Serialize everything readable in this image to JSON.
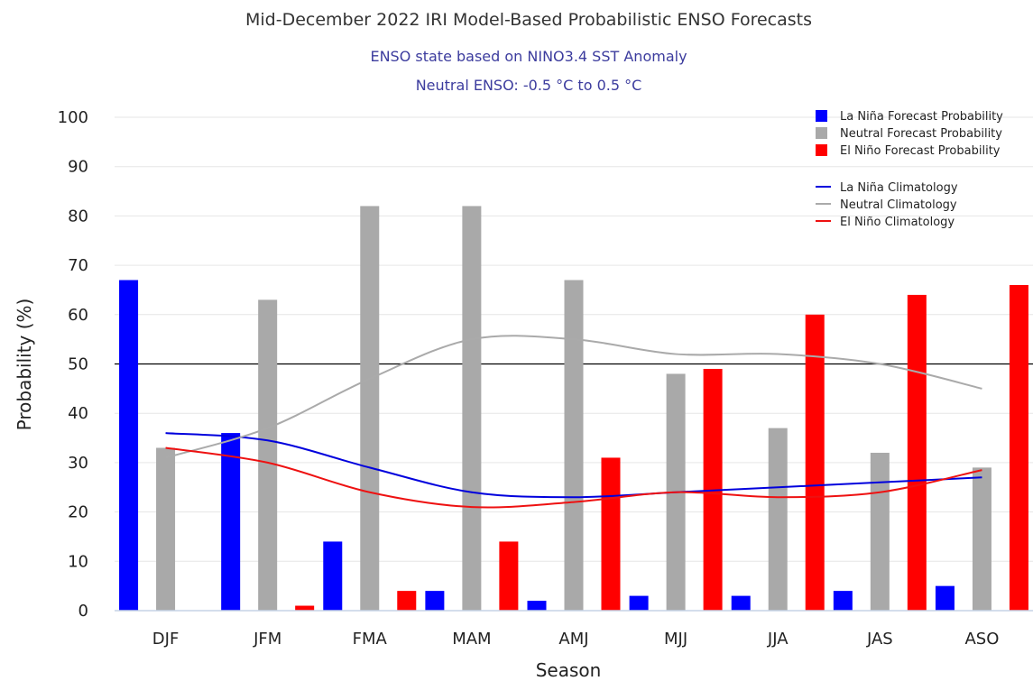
{
  "chart_data": {
    "type": "bar",
    "title": "Mid-December 2022 IRI Model-Based Probabilistic ENSO Forecasts",
    "subtitle_lines": [
      "ENSO state based on NINO3.4 SST Anomaly",
      "Neutral ENSO: -0.5 °C to 0.5 °C"
    ],
    "xlabel": "Season",
    "ylabel": "Probability (%)",
    "ylim": [
      0,
      100
    ],
    "yticks": [
      0,
      10,
      20,
      30,
      40,
      50,
      60,
      70,
      80,
      90,
      100
    ],
    "reference_line": 50,
    "grid": true,
    "legend_position": "top-right",
    "categories": [
      "DJF",
      "JFM",
      "FMA",
      "MAM",
      "AMJ",
      "MJJ",
      "JJA",
      "JAS",
      "ASO"
    ],
    "series": [
      {
        "name": "La Niña Forecast Probability",
        "color": "#0000ff",
        "values": [
          67,
          36,
          14,
          4,
          2,
          3,
          3,
          4,
          5
        ]
      },
      {
        "name": "Neutral Forecast Probability",
        "color": "#a9a9a9",
        "values": [
          33,
          63,
          82,
          82,
          67,
          48,
          37,
          32,
          29
        ]
      },
      {
        "name": "El Niño Forecast Probability",
        "color": "#ff0000",
        "values": [
          0,
          1,
          4,
          14,
          31,
          49,
          60,
          64,
          66
        ]
      }
    ],
    "climatology": [
      {
        "name": "La Niña Climatology",
        "color": "#0000dd",
        "values": [
          36,
          34.5,
          29,
          24,
          23,
          24,
          25,
          26,
          27
        ]
      },
      {
        "name": "Neutral Climatology",
        "color": "#aaaaaa",
        "values": [
          31,
          37,
          47,
          55,
          55,
          52,
          52,
          50,
          45
        ]
      },
      {
        "name": "El Niño Climatology",
        "color": "#ee1111",
        "values": [
          33,
          30,
          24,
          21,
          22,
          24,
          23,
          24,
          28.5
        ]
      }
    ]
  }
}
